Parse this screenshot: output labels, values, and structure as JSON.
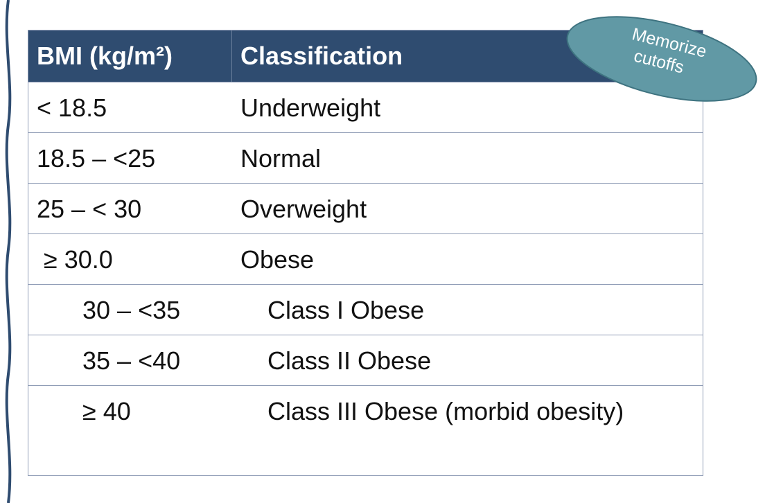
{
  "table": {
    "header": [
      "BMI (kg/m²)",
      "Classification"
    ],
    "rows": [
      [
        "< 18.5",
        "Underweight"
      ],
      [
        "18.5 – <25",
        "Normal"
      ],
      [
        "25 – < 30",
        "Overweight"
      ],
      [
        "≥ 30.0",
        "Obese"
      ],
      [
        "30 – <35",
        "Class I Obese"
      ],
      [
        "35 – <40",
        "Class II Obese"
      ],
      [
        "≥ 40",
        "Class III Obese (morbid obesity)"
      ]
    ]
  },
  "callout": {
    "lines": [
      "Memorize",
      "cutoffs"
    ]
  }
}
